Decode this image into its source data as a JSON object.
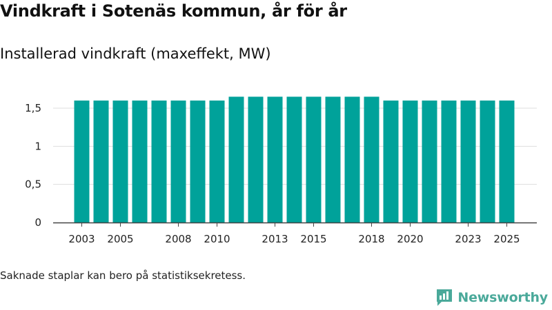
{
  "title": "Vindkraft i Sotenäs kommun, år för år",
  "subtitle": "Installerad vindkraft (maxeffekt, MW)",
  "footnote": "Saknade staplar kan bero på statistiksekretess.",
  "brand": {
    "name": "Newsworthy",
    "icon": "newsworthy-logo-icon",
    "color": "#4aa99a"
  },
  "colors": {
    "bar": "#00a29a",
    "grid": "#dddddd",
    "axis": "#444444"
  },
  "chart_data": {
    "type": "bar",
    "title": "Installerad vindkraft (maxeffekt, MW)",
    "xlabel": "",
    "ylabel": "",
    "categories": [
      "2003",
      "2004",
      "2005",
      "2006",
      "2007",
      "2008",
      "2009",
      "2010",
      "2011",
      "2012",
      "2013",
      "2014",
      "2015",
      "2016",
      "2017",
      "2018",
      "2019",
      "2020",
      "2021",
      "2022",
      "2023",
      "2024",
      "2025"
    ],
    "values": [
      1.6,
      1.6,
      1.6,
      1.6,
      1.6,
      1.6,
      1.6,
      1.6,
      1.65,
      1.65,
      1.65,
      1.65,
      1.65,
      1.65,
      1.65,
      1.65,
      1.6,
      1.6,
      1.6,
      1.6,
      1.6,
      1.6,
      1.6
    ],
    "x_tick_labels": [
      "2003",
      "2005",
      "2008",
      "2010",
      "2013",
      "2015",
      "2018",
      "2020",
      "2023",
      "2025"
    ],
    "y_ticks": [
      0,
      0.5,
      1,
      1.5
    ],
    "y_tick_labels": [
      "0",
      "0,5",
      "1",
      "1,5"
    ],
    "ylim": [
      0,
      1.65
    ],
    "grid": true
  }
}
